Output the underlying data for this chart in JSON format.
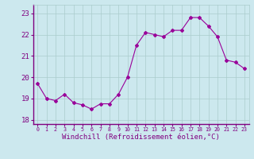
{
  "x": [
    0,
    1,
    2,
    3,
    4,
    5,
    6,
    7,
    8,
    9,
    10,
    11,
    12,
    13,
    14,
    15,
    16,
    17,
    18,
    19,
    20,
    21,
    22,
    23
  ],
  "y": [
    19.7,
    19.0,
    18.9,
    19.2,
    18.8,
    18.7,
    18.5,
    18.75,
    18.75,
    19.2,
    20.0,
    21.5,
    22.1,
    22.0,
    21.9,
    22.2,
    22.2,
    22.8,
    22.8,
    22.4,
    21.9,
    20.8,
    20.7,
    20.4
  ],
  "line_color": "#990099",
  "marker": "D",
  "marker_size": 2,
  "bg_color": "#cce8ee",
  "grid_color": "#aacccc",
  "xlabel": "Windchill (Refroidissement éolien,°C)",
  "xlabel_color": "#800080",
  "tick_color": "#800080",
  "ylim": [
    17.8,
    23.4
  ],
  "yticks": [
    18,
    19,
    20,
    21,
    22,
    23
  ]
}
